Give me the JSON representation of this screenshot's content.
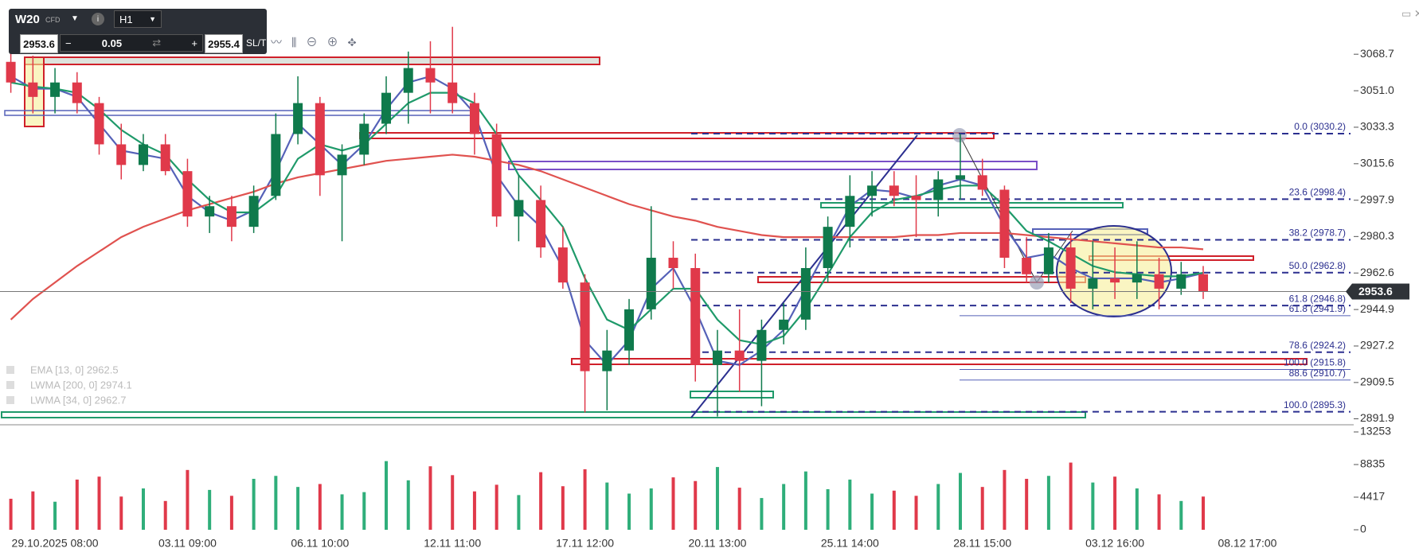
{
  "toolbar": {
    "symbol": "W20",
    "symbol_type": "CFD",
    "timeframe": "H1",
    "bid": "2953.6",
    "lot": "0.05",
    "ask": "2955.4",
    "sltp": "SL/TP"
  },
  "chart_data": {
    "type": "candlestick",
    "categories": [
      null,
      null,
      "29.10.2025 08:00",
      null,
      null,
      null,
      null,
      null,
      "03.11 09:00",
      null,
      null,
      null,
      null,
      null,
      "06.11 10:00",
      null,
      null,
      null,
      null,
      null,
      "12.11 11:00",
      null,
      null,
      null,
      null,
      null,
      "17.11 12:00",
      null,
      null,
      null,
      null,
      null,
      "20.11 13:00",
      null,
      null,
      null,
      null,
      null,
      "25.11 14:00",
      null,
      null,
      null,
      null,
      null,
      "28.11 15:00",
      null,
      null,
      null,
      null,
      null,
      "03.12 16:00",
      null,
      null,
      null,
      null,
      null,
      "08.12 17:00"
    ],
    "open": [
      3065,
      3055,
      3048,
      3055,
      3045,
      3025,
      3015,
      3025,
      3012,
      2990,
      2995,
      2985,
      3000,
      3030,
      3045,
      3010,
      3020,
      3035,
      3050,
      3062,
      3055,
      3045,
      3030,
      2990,
      2998,
      2975,
      2958,
      2915,
      2925,
      2945,
      2970,
      2965,
      2918,
      2925,
      2920,
      2935,
      2940,
      2965,
      2985,
      3000,
      3005,
      3000,
      2998,
      3008,
      3010,
      3003,
      2970,
      2962,
      2975,
      2955,
      2960,
      2958,
      2962,
      2955,
      2962,
      null,
      null
    ],
    "high": [
      3078,
      3068,
      3062,
      3060,
      3048,
      3035,
      3030,
      3030,
      3018,
      3000,
      3000,
      3005,
      3040,
      3058,
      3048,
      3025,
      3040,
      3058,
      3070,
      3075,
      3082,
      3050,
      3035,
      3010,
      3005,
      2985,
      2962,
      2935,
      2950,
      2995,
      2978,
      2972,
      2935,
      2945,
      2940,
      2948,
      2975,
      2990,
      3010,
      3012,
      3012,
      3010,
      3012,
      3030,
      3018,
      3005,
      2980,
      2982,
      2982,
      2978,
      2975,
      2978,
      2970,
      2968,
      2966,
      null,
      null
    ],
    "low": [
      3050,
      3040,
      3040,
      3040,
      3020,
      3008,
      3012,
      3010,
      2985,
      2982,
      2978,
      2982,
      2998,
      3025,
      3000,
      2978,
      3015,
      3030,
      3035,
      3040,
      3040,
      3020,
      2985,
      2978,
      2970,
      2955,
      2895,
      2896,
      2918,
      2940,
      2955,
      2910,
      2893,
      2905,
      2898,
      2928,
      2935,
      2958,
      2975,
      2990,
      2995,
      2980,
      2990,
      2998,
      3000,
      2965,
      2958,
      2958,
      2948,
      2945,
      2950,
      2950,
      2945,
      2952,
      2950,
      null,
      null
    ],
    "close": [
      3055,
      3048,
      3055,
      3045,
      3025,
      3015,
      3025,
      3012,
      2990,
      2995,
      2985,
      3000,
      3030,
      3045,
      3010,
      3020,
      3035,
      3050,
      3062,
      3055,
      3045,
      3030,
      2990,
      2998,
      2975,
      2958,
      2915,
      2925,
      2945,
      2970,
      2965,
      2918,
      2925,
      2920,
      2935,
      2940,
      2965,
      2985,
      3000,
      3005,
      3000,
      2998,
      3008,
      3010,
      3003,
      2970,
      2962,
      2975,
      2955,
      2960,
      2958,
      2962,
      2955,
      2962,
      2953.6,
      null,
      null
    ],
    "up_color": "#0f7a4c",
    "down_color": "#e0394a",
    "series": [
      {
        "name": "EMA [13, 0] 2962.5",
        "color": "#5561b8",
        "values": [
          3058,
          3052,
          3052,
          3048,
          3035,
          3022,
          3020,
          3018,
          3000,
          2992,
          2988,
          2993,
          3012,
          3035,
          3025,
          3015,
          3025,
          3042,
          3055,
          3058,
          3052,
          3040,
          3010,
          2995,
          2985,
          2965,
          2930,
          2918,
          2930,
          2955,
          2965,
          2945,
          2920,
          2918,
          2925,
          2935,
          2955,
          2975,
          2995,
          3003,
          3002,
          2999,
          3005,
          3008,
          3005,
          2985,
          2970,
          2972,
          2965,
          2960,
          2960,
          2960,
          2958,
          2960,
          2962.5,
          null,
          null
        ]
      },
      {
        "name": "LWMA [200, 0] 2974.1",
        "color": "#e0524f",
        "values": [
          2940,
          2950,
          2958,
          2966,
          2973,
          2980,
          2985,
          2989,
          2993,
          2996,
          2999,
          3002,
          3006,
          3009,
          3011,
          3013,
          3015,
          3017,
          3018,
          3019,
          3020,
          3019,
          3017,
          3015,
          3012,
          3008,
          3004,
          3000,
          2996,
          2993,
          2990,
          2988,
          2985,
          2983,
          2981,
          2980,
          2980,
          2980,
          2980,
          2980,
          2980,
          2981,
          2981,
          2982,
          2982,
          2982,
          2981,
          2980,
          2979,
          2978,
          2977,
          2976,
          2975,
          2975,
          2974.1,
          null,
          null
        ]
      },
      {
        "name": "LWMA [34, 0] 2962.7",
        "color": "#1f9a6a",
        "values": [
          3055,
          3053,
          3052,
          3050,
          3042,
          3032,
          3025,
          3020,
          3008,
          2998,
          2992,
          2992,
          3000,
          3018,
          3025,
          3022,
          3025,
          3035,
          3045,
          3050,
          3050,
          3045,
          3030,
          3010,
          2998,
          2985,
          2960,
          2940,
          2935,
          2945,
          2955,
          2955,
          2940,
          2930,
          2928,
          2932,
          2945,
          2962,
          2980,
          2992,
          2998,
          3000,
          3003,
          3005,
          3005,
          2995,
          2983,
          2978,
          2972,
          2966,
          2963,
          2962,
          2961,
          2961,
          2962.7,
          null,
          null
        ]
      }
    ],
    "ylim": [
      2889,
      3095
    ],
    "yticks": [
      3068.7,
      {
        "value": 3051.0,
        "label": "3051.0"
      },
      3033.3,
      3015.6,
      2997.9,
      2980.3,
      2962.6,
      2944.9,
      2927.2,
      2909.5,
      2891.9
    ],
    "last_price": 2953.6,
    "fib_levels": [
      {
        "label": "0.0 (3030.2)",
        "value": 3030.2
      },
      {
        "label": "23.6 (2998.4)",
        "value": 2998.4
      },
      {
        "label": "38.2 (2978.7)",
        "value": 2978.7
      },
      {
        "label": "50.0 (2962.8)",
        "value": 2962.8
      },
      {
        "label": "61.8 (2946.8)",
        "value": 2946.8
      },
      {
        "label": "78.6 (2924.2)",
        "value": 2924.2
      },
      {
        "label": "100.0 (2895.3)",
        "value": 2895.3
      }
    ],
    "fib_levels_2": [
      {
        "label": "61.8 (2941.9)",
        "value": 2941.9
      },
      {
        "label": "100.0 (2915.8)",
        "value": 2915.8
      },
      {
        "label": "88.6 (2910.7)",
        "value": 2910.7
      }
    ],
    "volume": {
      "values": [
        4200,
        5200,
        3800,
        6800,
        7200,
        4500,
        5600,
        3900,
        8100,
        5400,
        4600,
        6900,
        7300,
        5800,
        6200,
        4800,
        5100,
        9300,
        6700,
        8600,
        7400,
        5200,
        6100,
        4700,
        7800,
        5900,
        8200,
        6400,
        4900,
        5600,
        7100,
        6600,
        8500,
        5700,
        4300,
        6200,
        7900,
        5500,
        6800,
        4900,
        5300,
        4600,
        6200,
        7700,
        5800,
        8100,
        6900,
        7300,
        9100,
        6400,
        7200,
        5600,
        4800,
        3900,
        4500,
        null,
        null
      ],
      "ylim": [
        0,
        13253
      ],
      "yticks": [
        13253,
        8835,
        4417,
        0
      ]
    }
  }
}
